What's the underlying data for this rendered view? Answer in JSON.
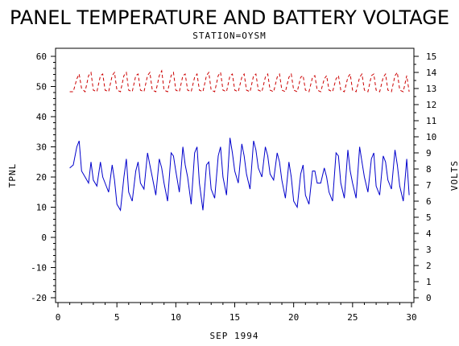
{
  "chart_data": {
    "type": "line",
    "title": "PANEL TEMPERATURE AND BATTERY VOLTAGE",
    "subtitle": "STATION=OYSM",
    "xlabel": "SEP 1994",
    "ylabel_left": "TPNL",
    "ylabel_right": "VOLTS",
    "xlim": [
      0,
      30
    ],
    "ylim_left": [
      -20,
      60
    ],
    "ylim_right": [
      0,
      15
    ],
    "x_ticks": [
      "0",
      "5",
      "10",
      "15",
      "20",
      "25",
      "30"
    ],
    "y_left_ticks": [
      "-20",
      "-10",
      "0",
      "10",
      "20",
      "30",
      "40",
      "50",
      "60"
    ],
    "y_right_ticks": [
      "0",
      "1",
      "2",
      "3",
      "4",
      "5",
      "6",
      "7",
      "8",
      "9",
      "10",
      "11",
      "12",
      "13",
      "14",
      "15"
    ],
    "grid": false,
    "series": [
      {
        "name": "TPNL",
        "axis": "left",
        "color": "#0000cc",
        "style": "solid",
        "x": [
          1.0,
          1.3,
          1.6,
          1.8,
          2.0,
          2.3,
          2.6,
          2.8,
          3.0,
          3.3,
          3.6,
          3.8,
          4.0,
          4.3,
          4.6,
          4.8,
          5.0,
          5.3,
          5.6,
          5.8,
          6.0,
          6.3,
          6.6,
          6.8,
          7.0,
          7.3,
          7.6,
          7.8,
          8.0,
          8.3,
          8.6,
          8.8,
          9.0,
          9.3,
          9.6,
          9.8,
          10.0,
          10.3,
          10.6,
          10.8,
          11.0,
          11.3,
          11.6,
          11.8,
          12.0,
          12.3,
          12.6,
          12.8,
          13.0,
          13.3,
          13.6,
          13.8,
          14.0,
          14.3,
          14.6,
          14.8,
          15.0,
          15.3,
          15.6,
          15.8,
          16.0,
          16.3,
          16.6,
          16.8,
          17.0,
          17.3,
          17.6,
          17.8,
          18.0,
          18.3,
          18.6,
          18.8,
          19.0,
          19.3,
          19.6,
          19.8,
          20.0,
          20.3,
          20.6,
          20.8,
          21.0,
          21.3,
          21.6,
          21.8,
          22.0,
          22.3,
          22.6,
          22.8,
          23.0,
          23.3,
          23.6,
          23.8,
          24.0,
          24.3,
          24.6,
          24.8,
          25.0,
          25.3,
          25.6,
          25.8,
          26.0,
          26.3,
          26.6,
          26.8,
          27.0,
          27.3,
          27.6,
          27.8,
          28.0,
          28.3,
          28.6,
          28.8,
          29.0,
          29.3,
          29.6,
          29.8
        ],
        "y": [
          23,
          24,
          30,
          32,
          22,
          20,
          18,
          25,
          19,
          17,
          25,
          20,
          18,
          15,
          24,
          19,
          11,
          9,
          20,
          26,
          15,
          12,
          22,
          25,
          18,
          16,
          28,
          24,
          20,
          14,
          26,
          23,
          18,
          12,
          28,
          27,
          22,
          15,
          30,
          24,
          20,
          11,
          28,
          30,
          18,
          9,
          24,
          25,
          16,
          13,
          27,
          30,
          20,
          14,
          33,
          28,
          22,
          18,
          31,
          27,
          21,
          16,
          32,
          29,
          23,
          20,
          30,
          27,
          21,
          19,
          28,
          25,
          19,
          13,
          25,
          20,
          12,
          10,
          21,
          24,
          14,
          11,
          22,
          22,
          18,
          18,
          23,
          20,
          15,
          12,
          28,
          27,
          18,
          13,
          29,
          22,
          18,
          13,
          30,
          25,
          20,
          15,
          26,
          28,
          17,
          14,
          27,
          25,
          19,
          16,
          29,
          24,
          17,
          12,
          26,
          14
        ]
      },
      {
        "name": "VOLTS",
        "axis": "right",
        "color": "#cc0000",
        "style": "dashed",
        "x": [
          1.0,
          1.3,
          1.6,
          1.8,
          2.0,
          2.3,
          2.6,
          2.8,
          3.0,
          3.3,
          3.6,
          3.8,
          4.0,
          4.3,
          4.6,
          4.8,
          5.0,
          5.3,
          5.6,
          5.8,
          6.0,
          6.3,
          6.6,
          6.8,
          7.0,
          7.3,
          7.6,
          7.8,
          8.0,
          8.3,
          8.6,
          8.8,
          9.0,
          9.3,
          9.6,
          9.8,
          10.0,
          10.3,
          10.6,
          10.8,
          11.0,
          11.3,
          11.6,
          11.8,
          12.0,
          12.3,
          12.6,
          12.8,
          13.0,
          13.3,
          13.6,
          13.8,
          14.0,
          14.3,
          14.6,
          14.8,
          15.0,
          15.3,
          15.6,
          15.8,
          16.0,
          16.3,
          16.6,
          16.8,
          17.0,
          17.3,
          17.6,
          17.8,
          18.0,
          18.3,
          18.6,
          18.8,
          19.0,
          19.3,
          19.6,
          19.8,
          20.0,
          20.3,
          20.6,
          20.8,
          21.0,
          21.3,
          21.6,
          21.8,
          22.0,
          22.3,
          22.6,
          22.8,
          23.0,
          23.3,
          23.6,
          23.8,
          24.0,
          24.3,
          24.6,
          24.8,
          25.0,
          25.3,
          25.6,
          25.8,
          26.0,
          26.3,
          26.6,
          26.8,
          27.0,
          27.3,
          27.6,
          27.8,
          28.0,
          28.3,
          28.6,
          28.8,
          29.0,
          29.3,
          29.6,
          29.8
        ],
        "y": [
          12.8,
          12.8,
          13.6,
          13.9,
          13.0,
          12.8,
          13.8,
          14.0,
          12.9,
          12.8,
          13.8,
          13.9,
          12.9,
          12.8,
          13.8,
          14.0,
          12.9,
          12.8,
          13.8,
          14.0,
          12.9,
          12.8,
          13.8,
          13.9,
          12.9,
          12.8,
          13.8,
          14.0,
          12.9,
          12.8,
          13.8,
          14.1,
          12.9,
          12.8,
          13.8,
          14.0,
          12.9,
          12.8,
          13.8,
          13.9,
          12.9,
          12.8,
          13.7,
          13.9,
          12.9,
          12.8,
          13.8,
          14.0,
          12.9,
          12.8,
          13.8,
          14.0,
          12.9,
          12.8,
          13.8,
          13.9,
          12.9,
          12.8,
          13.7,
          13.9,
          12.9,
          12.8,
          13.8,
          13.9,
          12.9,
          12.8,
          13.7,
          13.9,
          12.9,
          12.8,
          13.7,
          13.9,
          12.9,
          12.8,
          13.7,
          13.9,
          12.9,
          12.8,
          13.7,
          13.8,
          12.9,
          12.8,
          13.7,
          13.8,
          12.9,
          12.8,
          13.6,
          13.8,
          12.9,
          12.8,
          13.6,
          13.8,
          12.9,
          12.8,
          13.7,
          13.9,
          12.9,
          12.8,
          13.7,
          13.9,
          12.9,
          12.8,
          13.8,
          13.9,
          12.9,
          12.8,
          13.7,
          13.9,
          12.9,
          12.8,
          13.8,
          14.0,
          12.9,
          12.8,
          13.8,
          12.8
        ]
      }
    ]
  }
}
